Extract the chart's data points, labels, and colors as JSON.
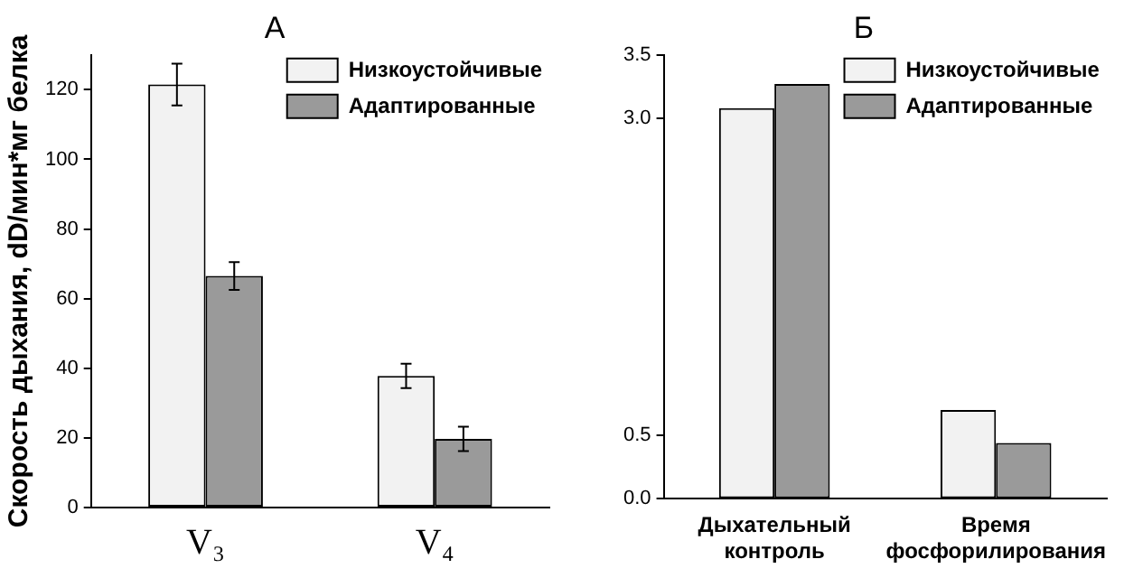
{
  "chart_data": [
    {
      "type": "bar",
      "title": "А",
      "ylabel": "Скорость дыхания, dD/мин*мг белка",
      "categories": [
        "V₃",
        "V₄"
      ],
      "series": [
        {
          "name": "Низкоустойчивые",
          "color": "#f2f2f2",
          "values": [
            121.5,
            37.8
          ],
          "errors": [
            6,
            3.5
          ]
        },
        {
          "name": "Адаптированные",
          "color": "#9a9a9a",
          "values": [
            66.5,
            19.7
          ],
          "errors": [
            4,
            3.5
          ]
        }
      ],
      "ylim": [
        0,
        130
      ],
      "yticks": [
        0,
        20,
        40,
        60,
        80,
        100,
        120
      ],
      "grid": false,
      "legend": "top right"
    },
    {
      "type": "bar",
      "title": "Б",
      "categories": [
        "Дыхательный контроль",
        "Время фосфорилирования"
      ],
      "series": [
        {
          "name": "Низкоустойчивые",
          "color": "#f2f2f2",
          "values": [
            3.08,
            0.7
          ]
        },
        {
          "name": "Адаптированные",
          "color": "#9a9a9a",
          "values": [
            3.27,
            0.44
          ]
        }
      ],
      "ylim": [
        0,
        3.5
      ],
      "yticks": [
        {
          "value": 0,
          "label": "0.0"
        },
        {
          "value": 0.5,
          "label": "0.5"
        },
        {
          "value": 3,
          "label": "3.0"
        },
        {
          "value": 3.5,
          "label": "3.5"
        }
      ],
      "grid": false,
      "legend": "top right"
    }
  ]
}
